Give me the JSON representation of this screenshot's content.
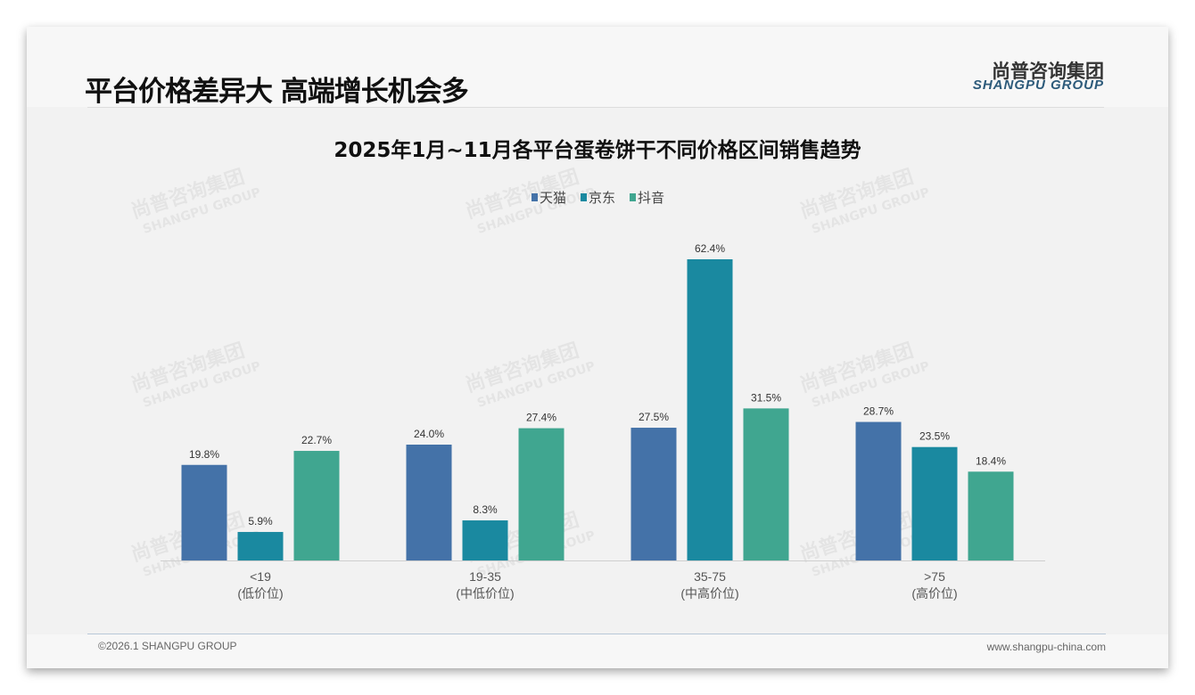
{
  "header": {
    "title": "平台价格差异大 高端增长机会多",
    "logo_cn": "尚普咨询集团",
    "logo_en": "SHANGPU GROUP"
  },
  "footer": {
    "copyright": "©2026.1 SHANGPU GROUP",
    "website": "www.shangpu-china.com"
  },
  "watermark": {
    "cn": "尚普咨询集团",
    "en": "SHANGPU GROUP"
  },
  "chart_data": {
    "type": "bar",
    "title": "2025年1月~11月各平台蛋卷饼干不同价格区间销售趋势",
    "categories": [
      "<19",
      "19-35",
      "35-75",
      ">75"
    ],
    "category_sublabels": [
      "(低价位)",
      "(中低价位)",
      "(中高价位)",
      "(高价位)"
    ],
    "series": [
      {
        "name": "天猫",
        "color": "#4472a8",
        "values": [
          19.8,
          24.0,
          27.5,
          28.7
        ]
      },
      {
        "name": "京东",
        "color": "#1a89a0",
        "values": [
          5.9,
          8.3,
          62.4,
          23.5
        ]
      },
      {
        "name": "抖音",
        "color": "#40a690",
        "values": [
          22.7,
          27.4,
          31.5,
          18.4
        ]
      }
    ],
    "value_suffix": "%",
    "ylim": [
      0,
      70
    ],
    "legend": "top-center",
    "grid": false
  }
}
